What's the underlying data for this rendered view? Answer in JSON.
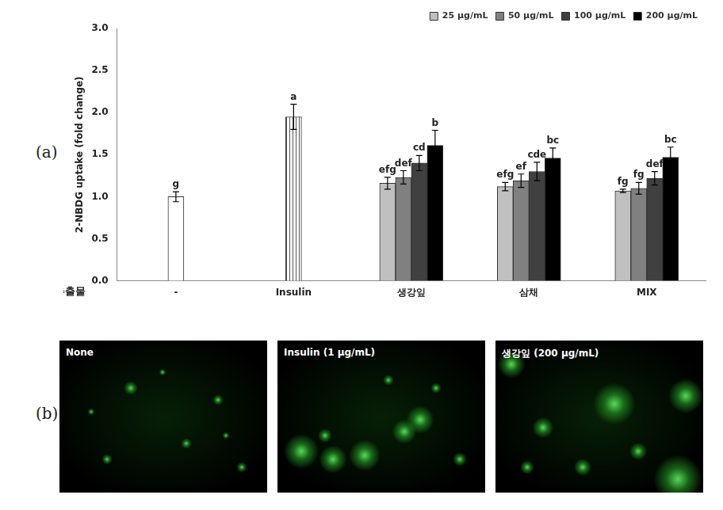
{
  "panel_labels": [
    "(a)",
    "(b)"
  ],
  "chart_data": {
    "type": "bar",
    "ylabel": "2-NBDG uptake (fold change)",
    "xlabel": "추출물",
    "categories": [
      "-",
      "Insulin",
      "생강잎",
      "삼채",
      "MIX"
    ],
    "ylim": [
      0,
      3
    ],
    "yticks": [
      {
        "value": 0,
        "label": "0.0"
      },
      0.5,
      {
        "value": 1,
        "label": "1.0"
      },
      1.5,
      {
        "value": 2,
        "label": "2.0"
      },
      2.5,
      {
        "value": 3,
        "label": "3.0"
      }
    ],
    "grid": false,
    "legend": "upper right",
    "series": [
      {
        "color": "#ffffff",
        "values": [
          1.0,
          null,
          null,
          null,
          null
        ],
        "errors": [
          0.06,
          null,
          null,
          null,
          null
        ],
        "significance_labels": [
          "g",
          null,
          null,
          null,
          null
        ]
      },
      {
        "color": "#ffffff",
        "marker": "vertical_hatch",
        "values": [
          null,
          1.95,
          null,
          null,
          null
        ],
        "errors": [
          null,
          0.15,
          null,
          null,
          null
        ],
        "significance_labels": [
          null,
          "a",
          null,
          null,
          null
        ]
      },
      {
        "name": "25 μg/mL",
        "color": "#c0c0c0",
        "values": [
          null,
          null,
          1.16,
          1.12,
          1.07
        ],
        "errors": [
          null,
          null,
          0.07,
          0.05,
          0.02
        ],
        "significance_labels": [
          null,
          null,
          "efg",
          "efg",
          "fg"
        ]
      },
      {
        "name": "50 μg/mL",
        "color": "#808080",
        "values": [
          null,
          null,
          1.23,
          1.19,
          1.1
        ],
        "errors": [
          null,
          null,
          0.08,
          0.08,
          0.07
        ],
        "significance_labels": [
          null,
          null,
          "def",
          "ef",
          "fg"
        ]
      },
      {
        "name": "100 μg/mL",
        "color": "#404040",
        "values": [
          null,
          null,
          1.4,
          1.3,
          1.22
        ],
        "errors": [
          null,
          null,
          0.09,
          0.11,
          0.08
        ],
        "significance_labels": [
          null,
          null,
          "cd",
          "cde",
          "def"
        ]
      },
      {
        "name": "200 μg/mL",
        "color": "#000000",
        "values": [
          null,
          null,
          1.61,
          1.46,
          1.47
        ],
        "errors": [
          null,
          null,
          0.18,
          0.12,
          0.12
        ],
        "significance_labels": [
          null,
          null,
          "b",
          "bc",
          "bc"
        ]
      }
    ]
  },
  "images": [
    {
      "label": "None"
    },
    {
      "label": "Insulin (1 μg/mL)"
    },
    {
      "label": "생강잎 (200 μg/mL)"
    }
  ]
}
